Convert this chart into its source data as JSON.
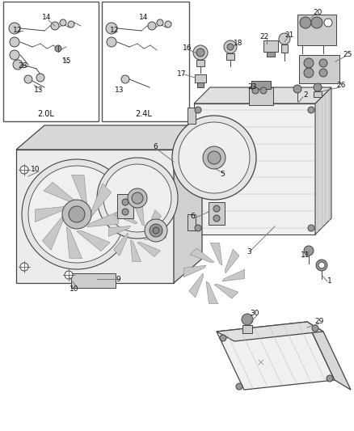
{
  "bg_color": "#ffffff",
  "fig_width": 4.38,
  "fig_height": 5.33,
  "dpi": 100,
  "line_color": "#444444",
  "light_gray": "#cccccc",
  "mid_gray": "#999999",
  "dark_gray": "#666666",
  "label_fontsize": 6.5,
  "label_color": "#111111"
}
